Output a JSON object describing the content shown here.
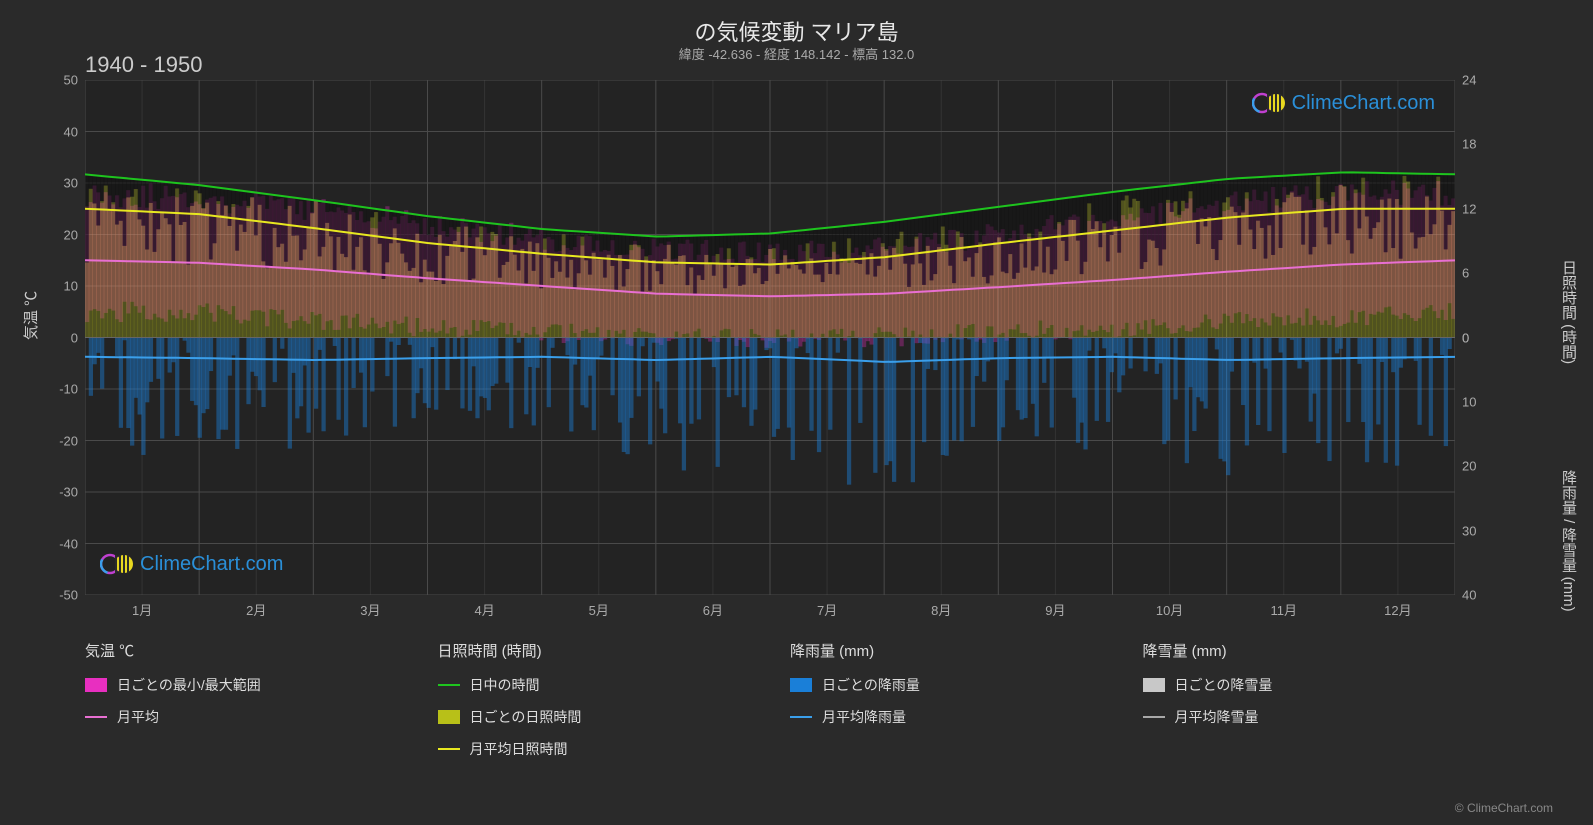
{
  "title": "の気候変動 マリア島",
  "subtitle": "緯度 -42.636 - 経度 148.142 - 標高 132.0",
  "period": "1940 - 1950",
  "watermark_text": "ClimeChart.com",
  "credit": "© ClimeChart.com",
  "y_left_label": "気温 ℃",
  "y_right_label_1": "日照時間 (時間)",
  "y_right_label_2": "降雨量 / 降雪量 (mm)",
  "x_ticks": [
    "1月",
    "2月",
    "3月",
    "4月",
    "5月",
    "6月",
    "7月",
    "8月",
    "9月",
    "10月",
    "11月",
    "12月"
  ],
  "y_left": {
    "min": -50,
    "max": 50,
    "step": 10
  },
  "y_right_top": {
    "min": 0,
    "max": 24,
    "step": 6
  },
  "y_right_bot": {
    "min": 0,
    "max": 40,
    "step": 10
  },
  "colors": {
    "bg": "#2a2a2a",
    "plot_bg": "#232323",
    "grid": "#4a4a4a",
    "text": "#d0d0d0",
    "temp_range": "#e82fc0",
    "temp_avg": "#e86fd2",
    "daylight": "#1ec41e",
    "sun_daily": "#b8c018",
    "sun_avg": "#e8e820",
    "rain_daily": "#1a7fd8",
    "rain_avg": "#3a9feb",
    "snow_daily": "#c8c8c8",
    "snow_avg": "#a8a8a8",
    "watermark": "#2a8fd8"
  },
  "legend": {
    "temp_header": "気温 ℃",
    "temp_range": "日ごとの最小/最大範囲",
    "temp_avg": "月平均",
    "sun_header": "日照時間 (時間)",
    "daylight": "日中の時間",
    "sun_daily": "日ごとの日照時間",
    "sun_avg": "月平均日照時間",
    "rain_header": "降雨量 (mm)",
    "rain_daily": "日ごとの降雨量",
    "rain_avg": "月平均降雨量",
    "snow_header": "降雪量 (mm)",
    "snow_daily": "日ごとの降雪量",
    "snow_avg": "月平均降雪量"
  },
  "series": {
    "daylight_hours": [
      15.2,
      14.2,
      12.8,
      11.3,
      10.1,
      9.4,
      9.7,
      10.8,
      12.2,
      13.6,
      14.8,
      15.4
    ],
    "sun_avg_hours": [
      12.0,
      11.5,
      10.2,
      8.8,
      7.8,
      7.0,
      6.8,
      7.5,
      8.8,
      10.0,
      11.2,
      12.0
    ],
    "temp_avg_c": [
      15.0,
      14.5,
      13.2,
      11.5,
      10.0,
      8.5,
      8.0,
      8.5,
      9.8,
      11.2,
      12.8,
      14.2
    ],
    "rain_avg_mm": [
      3.0,
      3.2,
      3.5,
      3.2,
      3.0,
      3.5,
      3.0,
      3.8,
      3.2,
      3.0,
      3.5,
      3.2
    ],
    "temp_min_c": [
      5,
      5,
      3,
      2,
      1,
      0,
      0,
      0,
      1,
      2,
      3,
      4
    ],
    "temp_max_c": [
      28,
      27,
      25,
      22,
      19,
      17,
      16,
      17,
      20,
      23,
      26,
      28
    ],
    "sun_daily_max": [
      14,
      13,
      12,
      10,
      9,
      8,
      8,
      9,
      10,
      12,
      13,
      14
    ],
    "rain_daily_max_mm": [
      15,
      12,
      14,
      10,
      12,
      16,
      13,
      18,
      14,
      12,
      16,
      14
    ]
  }
}
